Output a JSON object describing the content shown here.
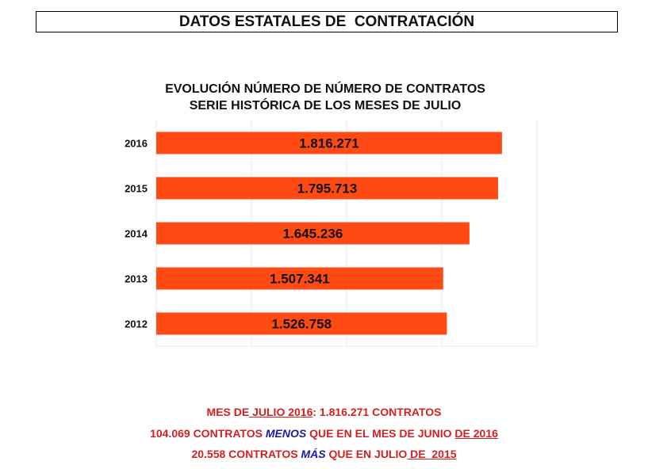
{
  "header": {
    "title": "DATOS ESTATALES DE  CONTRATACIÓN"
  },
  "chart_data": {
    "type": "bar",
    "orientation": "horizontal",
    "title": "EVOLUCIÓN NÚMERO DE NÚMERO DE CONTRATOS",
    "subtitle": "SERIE HISTÓRICA DE LOS MESES DE JULIO",
    "categories": [
      "2016",
      "2015",
      "2014",
      "2013",
      "2012"
    ],
    "values": [
      1816271,
      1795713,
      1645236,
      1507341,
      1526758
    ],
    "data_labels": [
      "1.816.271",
      "1.795.713",
      "1.645.236",
      "1.507.341",
      "1.526.758"
    ],
    "xlim": [
      0,
      2000000
    ],
    "grid": true,
    "bar_color": "#ff4a14",
    "grid_color": "#e8e8e8"
  },
  "footer": {
    "line1": {
      "a": "MES DE",
      "b": " JULIO 2016",
      "c": ": 1.816.271 CONTRATOS"
    },
    "line2": {
      "a": "104.069 CONTRATOS ",
      "b": "MENOS",
      "c": " QUE EN EL MES DE JUNIO ",
      "d": "DE 2016"
    },
    "line3": {
      "a": "20.558 CONTRATOS ",
      "b": "MÁS",
      "c": " QUE EN JULIO",
      "d": " DE  2015"
    }
  }
}
